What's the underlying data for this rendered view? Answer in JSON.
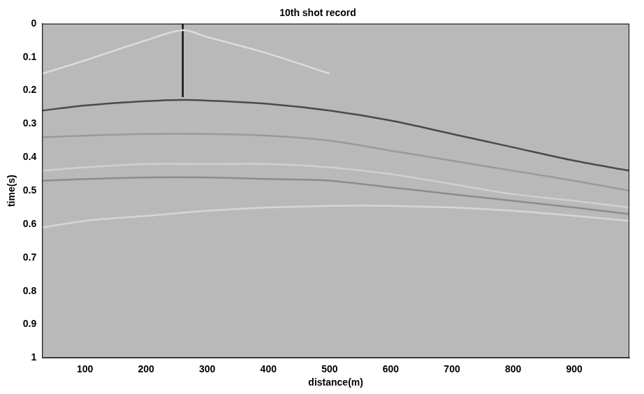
{
  "chart_data": {
    "type": "line",
    "title": "10th shot record",
    "x_label": "distance(m)",
    "y_label": "time(s)",
    "xlim": [
      30,
      990
    ],
    "xticks": [
      100,
      200,
      300,
      400,
      500,
      600,
      700,
      800,
      900
    ],
    "ylim": [
      0,
      1
    ],
    "yticks": [
      0,
      0.1,
      0.2,
      0.3,
      0.4,
      0.5,
      0.6,
      0.7,
      0.8,
      0.9,
      1
    ],
    "grid": false,
    "series": [
      {
        "color": "#dcdcdc",
        "x": [
          30,
          100,
          200,
          260,
          300,
          400,
          500
        ],
        "values": [
          0.15,
          0.11,
          0.05,
          0.02,
          0.04,
          0.09,
          0.15
        ]
      },
      {
        "color": "#111111",
        "x": [
          260,
          260
        ],
        "values": [
          0,
          0.22
        ]
      },
      {
        "color": "#4a4a4a",
        "x": [
          30,
          100,
          200,
          260,
          300,
          400,
          500,
          600,
          700,
          800,
          900,
          990
        ],
        "values": [
          0.26,
          0.245,
          0.232,
          0.228,
          0.23,
          0.24,
          0.26,
          0.29,
          0.33,
          0.37,
          0.41,
          0.44
        ]
      },
      {
        "color": "#9a9a9a",
        "x": [
          30,
          100,
          200,
          300,
          400,
          500,
          600,
          700,
          800,
          900,
          990
        ],
        "values": [
          0.34,
          0.335,
          0.33,
          0.33,
          0.335,
          0.35,
          0.38,
          0.41,
          0.44,
          0.47,
          0.5
        ]
      },
      {
        "color": "#d0d0d0",
        "x": [
          30,
          100,
          200,
          300,
          400,
          500,
          600,
          700,
          800,
          900,
          990
        ],
        "values": [
          0.44,
          0.43,
          0.42,
          0.42,
          0.42,
          0.43,
          0.45,
          0.48,
          0.51,
          0.53,
          0.55
        ]
      },
      {
        "color": "#8c8c8c",
        "x": [
          30,
          100,
          200,
          300,
          400,
          500,
          600,
          700,
          800,
          900,
          990
        ],
        "values": [
          0.47,
          0.465,
          0.46,
          0.46,
          0.465,
          0.47,
          0.49,
          0.51,
          0.53,
          0.55,
          0.57
        ]
      },
      {
        "color": "#d6d6d6",
        "x": [
          30,
          100,
          200,
          300,
          400,
          500,
          600,
          700,
          800,
          900,
          990
        ],
        "values": [
          0.61,
          0.59,
          0.575,
          0.56,
          0.55,
          0.545,
          0.545,
          0.55,
          0.56,
          0.575,
          0.59
        ]
      }
    ]
  }
}
